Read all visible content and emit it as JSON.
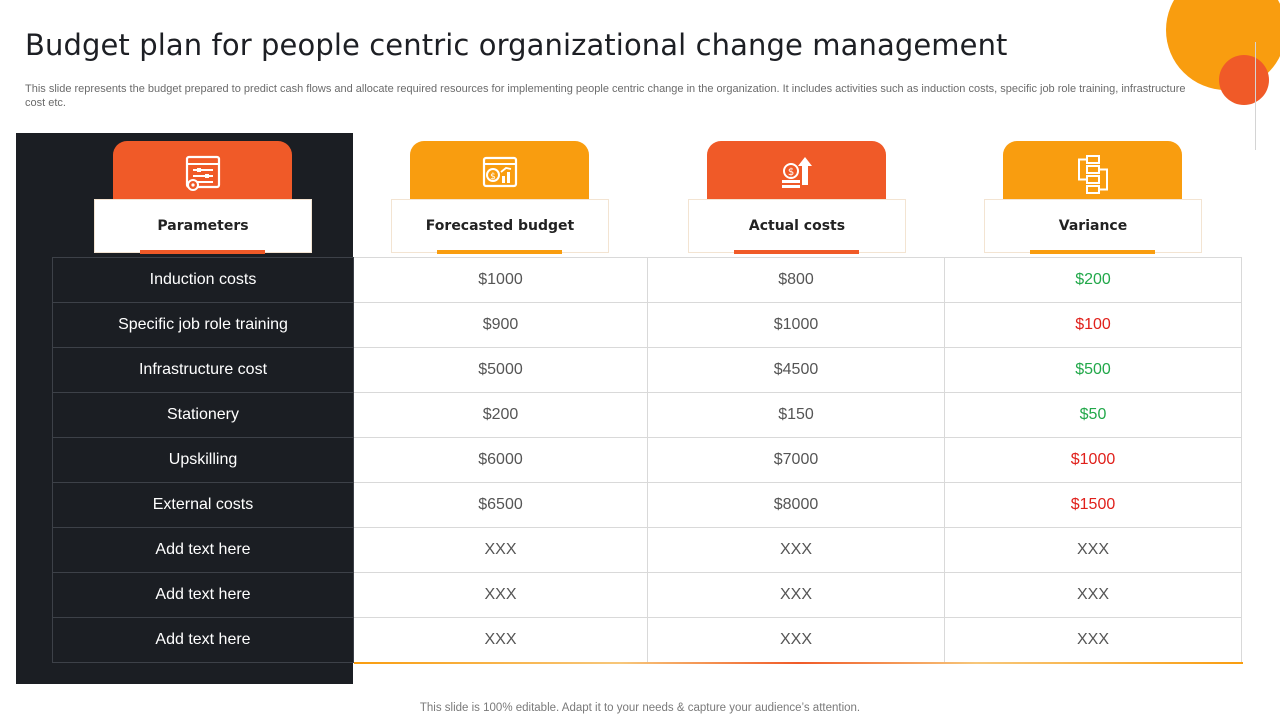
{
  "title": "Budget plan for people centric organizational change management",
  "description": "This slide represents the budget prepared to predict cash flows and allocate required resources for implementing people centric change in the organization. It includes activities such as induction costs, specific job role training, infrastructure cost etc.",
  "colors": {
    "orange": "#f05a28",
    "amber": "#f99d0f",
    "dark": "#1b1e23",
    "positive": "#22a84a",
    "negative": "#e0201b"
  },
  "columns": [
    {
      "label": "Parameters",
      "icon": "settings-panel-icon",
      "accent": "#f05a28"
    },
    {
      "label": "Forecasted budget",
      "icon": "budget-chart-icon",
      "accent": "#f99d0f"
    },
    {
      "label": "Actual costs",
      "icon": "money-growth-icon",
      "accent": "#f05a28"
    },
    {
      "label": "Variance",
      "icon": "flowchart-icon",
      "accent": "#f99d0f"
    }
  ],
  "rows": [
    {
      "parameter": "Induction  costs",
      "forecasted": "$1000",
      "actual": "$800",
      "variance": "$200",
      "variance_status": "positive"
    },
    {
      "parameter": "Specific job role training",
      "forecasted": "$900",
      "actual": "$1000",
      "variance": "$100",
      "variance_status": "negative"
    },
    {
      "parameter": "Infrastructure  cost",
      "forecasted": "$5000",
      "actual": "$4500",
      "variance": "$500",
      "variance_status": "positive"
    },
    {
      "parameter": "Stationery",
      "forecasted": "$200",
      "actual": "$150",
      "variance": "$50",
      "variance_status": "positive"
    },
    {
      "parameter": "Upskilling",
      "forecasted": "$6000",
      "actual": "$7000",
      "variance": "$1000",
      "variance_status": "negative"
    },
    {
      "parameter": "External costs",
      "forecasted": "$6500",
      "actual": "$8000",
      "variance": "$1500",
      "variance_status": "negative"
    },
    {
      "parameter": "Add text here",
      "forecasted": "XXX",
      "actual": "XXX",
      "variance": "XXX",
      "variance_status": "neutral"
    },
    {
      "parameter": "Add text here",
      "forecasted": "XXX",
      "actual": "XXX",
      "variance": "XXX",
      "variance_status": "neutral"
    },
    {
      "parameter": "Add text here",
      "forecasted": "XXX",
      "actual": "XXX",
      "variance": "XXX",
      "variance_status": "neutral"
    }
  ],
  "footer": "This slide is 100% editable. Adapt it to your needs & capture your audience’s attention."
}
